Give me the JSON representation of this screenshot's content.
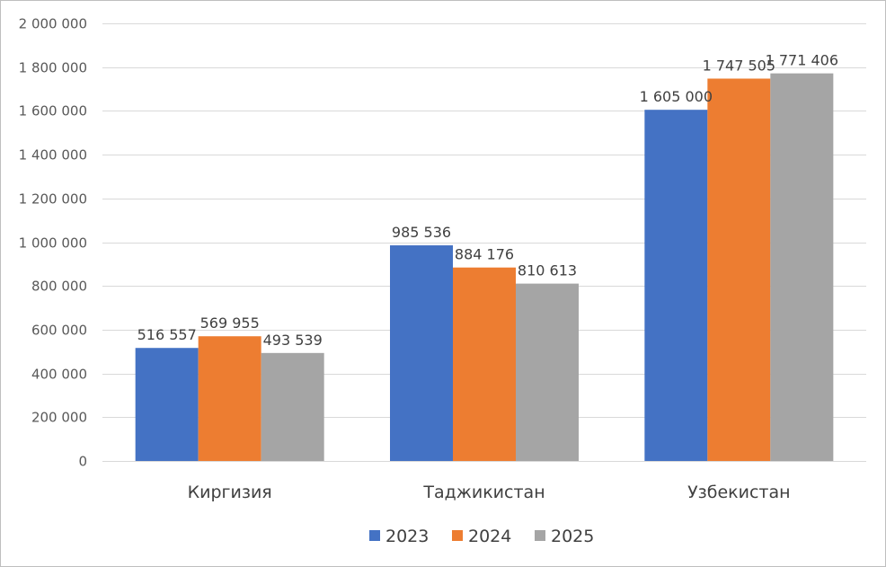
{
  "chart_data": {
    "type": "bar",
    "title": "",
    "xlabel": "",
    "ylabel": "",
    "categories": [
      "Киргизия",
      "Таджикистан",
      "Узбекистан"
    ],
    "series": [
      {
        "name": "2023",
        "color": "#4472C4",
        "values": [
          516557,
          985536,
          1605000
        ],
        "labels": [
          "516 557",
          "985 536",
          "1 605 000"
        ]
      },
      {
        "name": "2024",
        "color": "#ED7D31",
        "values": [
          569955,
          884176,
          1747505
        ],
        "labels": [
          "569 955",
          "884 176",
          "1 747 505"
        ]
      },
      {
        "name": "2025",
        "color": "#A5A5A5",
        "values": [
          493539,
          810613,
          1771406
        ],
        "labels": [
          "493 539",
          "810 613",
          "1 771 406"
        ]
      }
    ],
    "ylim": [
      0,
      2000000
    ],
    "yticks": [
      0,
      200000,
      400000,
      600000,
      800000,
      1000000,
      1200000,
      1400000,
      1600000,
      1800000,
      2000000
    ],
    "ytick_labels": [
      "0",
      "200 000",
      "400 000",
      "600 000",
      "800 000",
      "1 000 000",
      "1 200 000",
      "1 400 000",
      "1 600 000",
      "1 800 000",
      "2 000 000"
    ],
    "grid": true,
    "legend_position": "bottom"
  }
}
